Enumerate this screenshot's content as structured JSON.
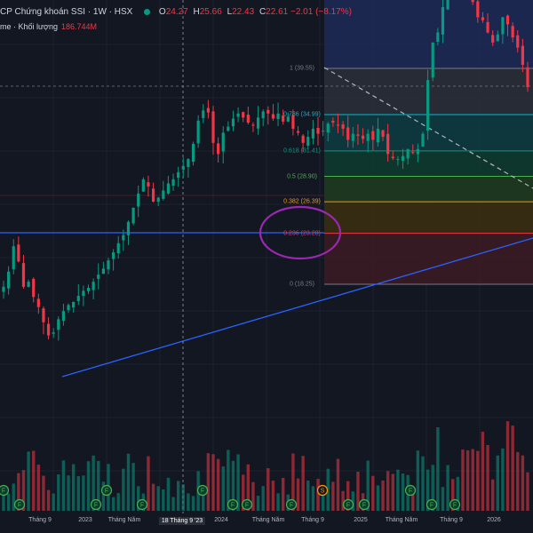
{
  "header": {
    "title": "CP Chứng khoán SSI · 1W · HSX",
    "open_label": "O",
    "open": "24.27",
    "high_label": "H",
    "high": "25.66",
    "low_label": "L",
    "low": "22.43",
    "close_label": "C",
    "close": "22.61",
    "change": "−2.01 (−8.17%)"
  },
  "volume": {
    "label": "me · Khối lượng",
    "value": "186.744M"
  },
  "colors": {
    "up": "#089981",
    "down": "#f23645",
    "accent": "#9c27b0",
    "trendline": "#2962ff"
  },
  "chart_data": {
    "type": "candlestick",
    "symbol": "SSI",
    "interval": "1W",
    "x_tick_labels": [
      "Tháng 9",
      "2023",
      "Tháng Năm",
      "18 Tháng 9 '23",
      "2024",
      "Tháng Năm",
      "Tháng 9",
      "2025",
      "Tháng Năm",
      "Tháng 9",
      "2026"
    ],
    "fib_levels": [
      {
        "ratio": "1",
        "price": "39.55",
        "label": "1 (39.55)"
      },
      {
        "ratio": "0.786",
        "price": "34.99",
        "label": "0.786 (34.99)"
      },
      {
        "ratio": "0.618",
        "price": "31.41",
        "label": "0.618 (31.41)"
      },
      {
        "ratio": "0.5",
        "price": "28.90",
        "label": "0.5 (28.90)"
      },
      {
        "ratio": "0.382",
        "price": "26.39",
        "label": "0.382 (26.39)"
      },
      {
        "ratio": "0.236",
        "price": "23.28",
        "label": "0.236 (23.28)"
      },
      {
        "ratio": "0",
        "price": "18.25",
        "label": "0 (18.25)"
      }
    ],
    "fib_colors": [
      "#787b86",
      "#00bcd4",
      "#089981",
      "#4caf50",
      "#ff9800",
      "#f23645",
      "#787b86"
    ],
    "fib_fills": [
      "#2a2e39",
      "#0d3b3f",
      "#0f3a2f",
      "#1e3a1f",
      "#3a2e12",
      "#3a1a24"
    ],
    "event_marker_letters": [
      "F",
      "F",
      "F",
      "F",
      "F",
      "F",
      "F",
      "F",
      "F",
      "S",
      "F",
      "F",
      "F",
      "F",
      "F"
    ],
    "close_series": [
      18,
      19.5,
      22,
      20.5,
      18,
      18.5,
      17,
      16,
      14.5,
      13.2,
      13.5,
      14.8,
      15.6,
      16.2,
      16.5,
      17.1,
      17.6,
      17.9,
      18.5,
      19.2,
      19.8,
      20.6,
      21.4,
      22.3,
      23.1,
      24.4,
      25.8,
      27.2,
      28.6,
      27.9,
      26.4,
      26.8,
      27.5,
      28.2,
      28.6,
      29.3,
      29.9,
      30.6,
      32.1,
      34.4,
      35.4,
      35.2,
      32.2,
      31.1,
      33.2,
      33.8,
      34.6,
      35.1,
      34.7,
      34.2,
      33.9,
      34.7,
      35.3,
      35.1,
      34.6,
      35.1,
      34.3,
      34.8,
      33.6,
      33.2,
      32.2,
      32.8,
      33.6,
      33.1,
      33.4,
      34.1,
      34.2,
      33.9,
      33.6,
      32.5,
      33.1,
      32.9,
      32.6,
      33.1,
      32.5,
      33.6,
      32.8,
      31.1,
      30.7,
      30.6,
      30.9,
      31.6,
      31.2,
      31.6,
      33.1,
      38.4,
      42.1,
      43.1,
      45.6,
      50.1,
      48.2,
      50.9,
      48.2,
      47.6,
      46.1,
      44.6,
      44.3,
      43.1,
      42.1,
      42.9,
      44.6,
      43.9,
      42.6,
      41.6,
      39.9,
      37.7
    ]
  }
}
